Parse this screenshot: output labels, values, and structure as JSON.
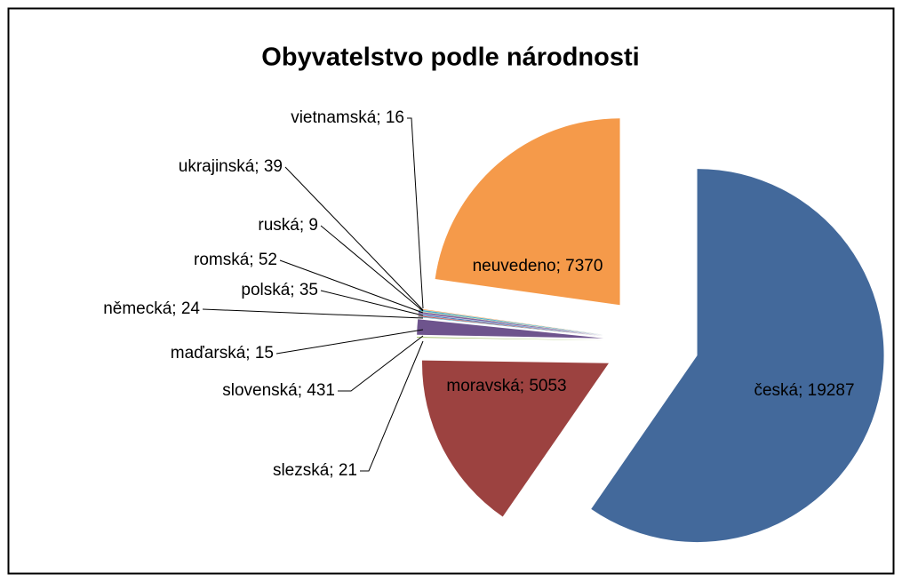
{
  "chart_data": {
    "type": "pie",
    "title": "Obyvatelstvo podle národnosti",
    "values": [
      19287,
      5053,
      21,
      431,
      15,
      24,
      35,
      52,
      9,
      39,
      16,
      7370
    ],
    "value_labels": [
      "česká; 19287",
      "moravská; 5053",
      "slezská; 21",
      "slovenská; 431",
      "maďarská; 15",
      "německá; 24",
      "polská; 35",
      "romská; 52",
      "ruská; 9",
      "ukrajinská; 39",
      "vietnamská; 16",
      "neuvedeno; 7370"
    ],
    "colors": [
      "#43699b",
      "#9c4240",
      "#9bbb59",
      "#6e548d",
      "#4bacc6",
      "#c0504d",
      "#4f81bd",
      "#8064a2",
      "#9bbb59",
      "#4bacc6",
      "#f79646",
      "#f59a4a"
    ],
    "exploded": true
  }
}
